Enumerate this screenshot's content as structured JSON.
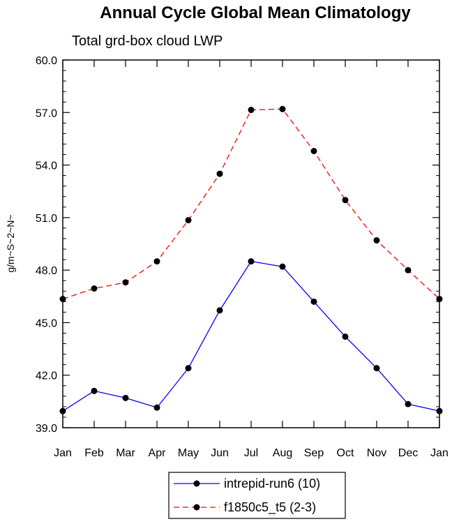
{
  "chart_data": {
    "type": "line",
    "title": "Annual Cycle Global Mean Climatology",
    "subtitle": "Total grd-box cloud LWP",
    "ylabel": "g/m~S~2~N~",
    "xlabel": "",
    "ylim": [
      39.0,
      60.0
    ],
    "y_ticks": [
      "39.0",
      "42.0",
      "45.0",
      "48.0",
      "51.0",
      "54.0",
      "57.0",
      "60.0"
    ],
    "categories": [
      "Jan",
      "Feb",
      "Mar",
      "Apr",
      "May",
      "Jun",
      "Jul",
      "Aug",
      "Sep",
      "Oct",
      "Nov",
      "Dec",
      "Jan"
    ],
    "series": [
      {
        "name": "intrepid-run6 (10)",
        "color": "#0000ff",
        "dash": "solid",
        "values": [
          39.95,
          41.1,
          40.7,
          40.15,
          42.4,
          45.7,
          48.5,
          48.2,
          46.2,
          44.2,
          42.4,
          40.35,
          39.95
        ]
      },
      {
        "name": "f1850c5_t5 (2-3)",
        "color": "#ff0000",
        "dash": "dashed",
        "values": [
          46.35,
          46.95,
          47.3,
          48.5,
          50.85,
          53.5,
          57.15,
          57.2,
          54.8,
          52.0,
          49.7,
          48.0,
          46.35
        ]
      }
    ],
    "legend_position": "bottom-center"
  }
}
